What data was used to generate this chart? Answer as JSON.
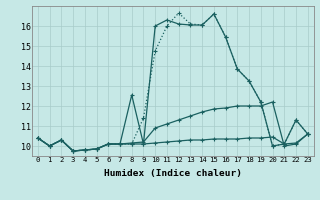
{
  "xlabel": "Humidex (Indice chaleur)",
  "x_ticks": [
    0,
    1,
    2,
    3,
    4,
    5,
    6,
    7,
    8,
    9,
    10,
    11,
    12,
    13,
    14,
    15,
    16,
    17,
    18,
    19,
    20,
    21,
    22,
    23
  ],
  "y_ticks": [
    10,
    11,
    12,
    13,
    14,
    15,
    16
  ],
  "xlim": [
    -0.5,
    23.5
  ],
  "ylim": [
    9.5,
    17.0
  ],
  "bg_color": "#c6e8e6",
  "grid_color": "#a8ccca",
  "line_color": "#1a6060",
  "lines": [
    {
      "x": [
        0,
        1,
        2,
        3,
        4,
        5,
        6,
        7,
        8,
        9,
        10,
        11,
        12,
        13,
        14,
        15,
        16,
        17,
        18,
        19,
        20,
        21,
        22,
        23
      ],
      "y": [
        10.4,
        10.0,
        10.3,
        9.75,
        9.8,
        9.85,
        10.1,
        10.1,
        10.1,
        11.4,
        14.75,
        16.0,
        16.65,
        16.1,
        16.05,
        16.6,
        15.45,
        13.85,
        13.25,
        12.2,
        10.0,
        10.1,
        11.3,
        10.6
      ],
      "linestyle": ":",
      "marker": "+"
    },
    {
      "x": [
        0,
        1,
        2,
        3,
        4,
        5,
        6,
        7,
        8,
        9,
        10,
        11,
        12,
        13,
        14,
        15,
        16,
        17,
        18,
        19,
        20,
        21,
        22,
        23
      ],
      "y": [
        10.4,
        10.0,
        10.3,
        9.75,
        9.8,
        9.85,
        10.1,
        10.1,
        12.55,
        10.1,
        16.0,
        16.3,
        16.1,
        16.05,
        16.05,
        16.6,
        15.45,
        13.85,
        13.25,
        12.2,
        10.0,
        10.1,
        11.3,
        10.6
      ],
      "linestyle": "-",
      "marker": "+"
    },
    {
      "x": [
        0,
        1,
        2,
        3,
        4,
        5,
        6,
        7,
        8,
        9,
        10,
        11,
        12,
        13,
        14,
        15,
        16,
        17,
        18,
        19,
        20,
        21,
        22,
        23
      ],
      "y": [
        10.4,
        10.0,
        10.3,
        9.75,
        9.8,
        9.85,
        10.1,
        10.1,
        10.15,
        10.2,
        10.9,
        11.1,
        11.3,
        11.5,
        11.7,
        11.85,
        11.9,
        12.0,
        12.0,
        12.0,
        12.2,
        10.0,
        10.1,
        10.6
      ],
      "linestyle": "-",
      "marker": "+"
    },
    {
      "x": [
        0,
        1,
        2,
        3,
        4,
        5,
        6,
        7,
        8,
        9,
        10,
        11,
        12,
        13,
        14,
        15,
        16,
        17,
        18,
        19,
        20,
        21,
        22,
        23
      ],
      "y": [
        10.4,
        10.0,
        10.3,
        9.75,
        9.8,
        9.85,
        10.1,
        10.1,
        10.1,
        10.1,
        10.15,
        10.2,
        10.25,
        10.3,
        10.3,
        10.35,
        10.35,
        10.35,
        10.4,
        10.4,
        10.45,
        10.1,
        10.15,
        10.6
      ],
      "linestyle": "-",
      "marker": "+"
    }
  ]
}
